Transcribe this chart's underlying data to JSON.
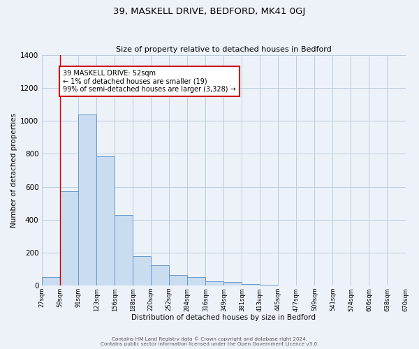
{
  "title": "39, MASKELL DRIVE, BEDFORD, MK41 0GJ",
  "subtitle": "Size of property relative to detached houses in Bedford",
  "xlabel": "Distribution of detached houses by size in Bedford",
  "ylabel": "Number of detached properties",
  "bar_values": [
    50,
    575,
    1040,
    785,
    430,
    180,
    125,
    65,
    50,
    25,
    20,
    10,
    5,
    2,
    1,
    0,
    0,
    0,
    0,
    0
  ],
  "bin_labels": [
    "27sqm",
    "59sqm",
    "91sqm",
    "123sqm",
    "156sqm",
    "188sqm",
    "220sqm",
    "252sqm",
    "284sqm",
    "316sqm",
    "349sqm",
    "381sqm",
    "413sqm",
    "445sqm",
    "477sqm",
    "509sqm",
    "541sqm",
    "574sqm",
    "606sqm",
    "638sqm",
    "670sqm"
  ],
  "bar_color": "#c9dcf0",
  "bar_edge_color": "#6699cc",
  "grid_color": "#bbccdd",
  "background_color": "#edf2f9",
  "red_line_x": 1.0,
  "annotation_text": "39 MASKELL DRIVE: 52sqm\n← 1% of detached houses are smaller (19)\n99% of semi-detached houses are larger (3,328) →",
  "annotation_box_color": "#ffffff",
  "annotation_box_edge_color": "#cc0000",
  "red_line_color": "#cc0000",
  "ylim": [
    0,
    1400
  ],
  "yticks": [
    0,
    200,
    400,
    600,
    800,
    1000,
    1200,
    1400
  ],
  "footer_line1": "Contains HM Land Registry data © Crown copyright and database right 2024.",
  "footer_line2": "Contains public sector information licensed under the Open Government Licence v3.0."
}
